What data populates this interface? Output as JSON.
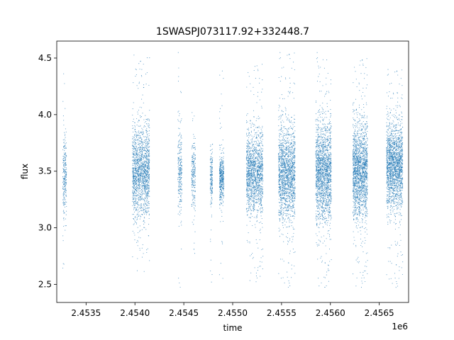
{
  "chart_data": {
    "type": "scatter",
    "title": "1SWASPJ073117.92+332448.7",
    "xlabel": "time",
    "ylabel": "flux",
    "offset_text": "1e6",
    "xlim": [
      2453200,
      2456800
    ],
    "ylim": [
      2.34,
      4.65
    ],
    "grid": false,
    "legend": "none",
    "marker_color": "#1f77b4",
    "x_ticks": [
      {
        "value": 2453500,
        "label": "2.4535"
      },
      {
        "value": 2454000,
        "label": "2.4540"
      },
      {
        "value": 2454500,
        "label": "2.4545"
      },
      {
        "value": 2455000,
        "label": "2.4550"
      },
      {
        "value": 2455500,
        "label": "2.4555"
      },
      {
        "value": 2456000,
        "label": "2.4560"
      },
      {
        "value": 2456500,
        "label": "2.4565"
      }
    ],
    "y_ticks": [
      {
        "value": 2.5,
        "label": "2.5"
      },
      {
        "value": 3.0,
        "label": "3.0"
      },
      {
        "value": 3.5,
        "label": "3.5"
      },
      {
        "value": 4.0,
        "label": "4.0"
      },
      {
        "value": 4.5,
        "label": "4.5"
      }
    ],
    "observing_seasons": [
      {
        "x_start": 2453262,
        "x_end": 2453300,
        "center": 3.45,
        "spread": 0.18,
        "y_min": 2.48,
        "y_max": 4.42,
        "n": 260
      },
      {
        "x_start": 2453975,
        "x_end": 2454150,
        "center": 3.48,
        "spread": 0.2,
        "y_min": 2.58,
        "y_max": 4.53,
        "n": 1600
      },
      {
        "x_start": 2454440,
        "x_end": 2454480,
        "center": 3.5,
        "spread": 0.18,
        "y_min": 2.45,
        "y_max": 4.55,
        "n": 260
      },
      {
        "x_start": 2454580,
        "x_end": 2454620,
        "center": 3.45,
        "spread": 0.15,
        "y_min": 2.65,
        "y_max": 4.05,
        "n": 220
      },
      {
        "x_start": 2454770,
        "x_end": 2454795,
        "center": 3.45,
        "spread": 0.12,
        "y_min": 2.45,
        "y_max": 3.75,
        "n": 180
      },
      {
        "x_start": 2454865,
        "x_end": 2454910,
        "center": 3.45,
        "spread": 0.1,
        "y_min": 2.45,
        "y_max": 4.4,
        "n": 420
      },
      {
        "x_start": 2455140,
        "x_end": 2455310,
        "center": 3.48,
        "spread": 0.18,
        "y_min": 2.5,
        "y_max": 4.45,
        "n": 1500
      },
      {
        "x_start": 2455470,
        "x_end": 2455640,
        "center": 3.48,
        "spread": 0.2,
        "y_min": 2.45,
        "y_max": 4.55,
        "n": 1700
      },
      {
        "x_start": 2455850,
        "x_end": 2456010,
        "center": 3.48,
        "spread": 0.22,
        "y_min": 2.45,
        "y_max": 4.55,
        "n": 1800
      },
      {
        "x_start": 2456230,
        "x_end": 2456380,
        "center": 3.5,
        "spread": 0.21,
        "y_min": 2.45,
        "y_max": 4.5,
        "n": 1800
      },
      {
        "x_start": 2456575,
        "x_end": 2456740,
        "center": 3.55,
        "spread": 0.18,
        "y_min": 2.45,
        "y_max": 4.4,
        "n": 1900
      }
    ]
  }
}
